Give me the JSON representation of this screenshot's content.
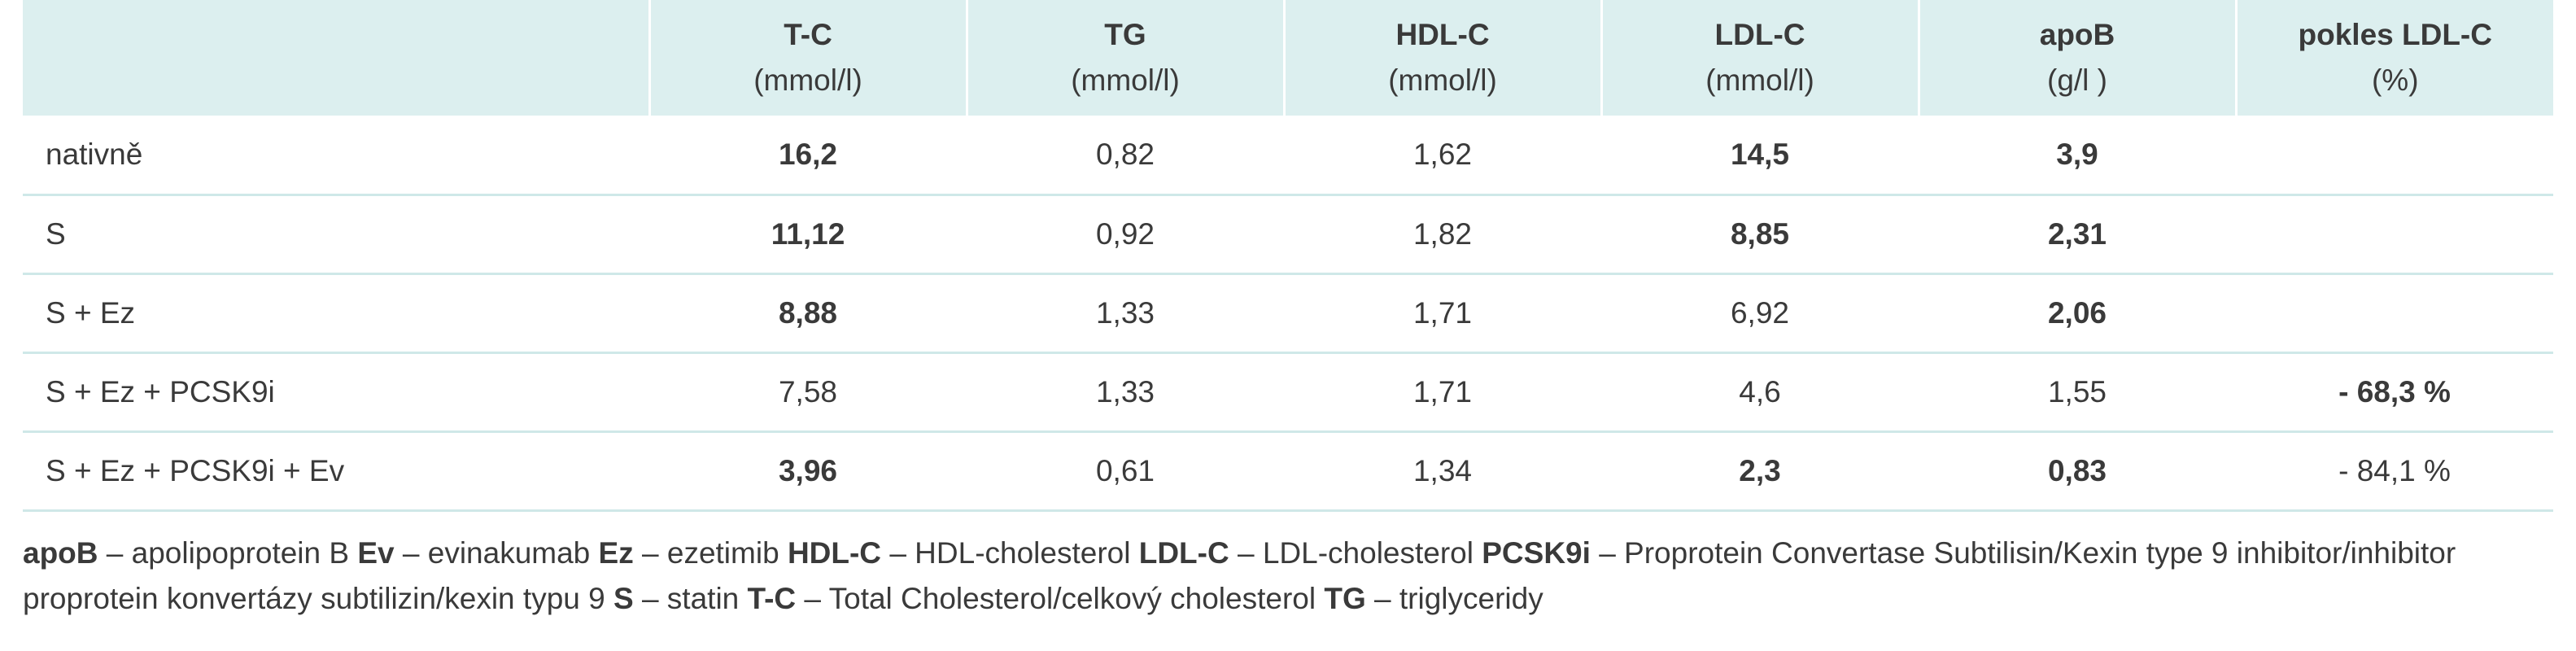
{
  "table": {
    "headers": [
      {
        "name": "",
        "unit": ""
      },
      {
        "name": "T-C",
        "unit": "(mmol/l)"
      },
      {
        "name": "TG",
        "unit": "(mmol/l)"
      },
      {
        "name": "HDL-C",
        "unit": "(mmol/l)"
      },
      {
        "name": "LDL-C",
        "unit": "(mmol/l)"
      },
      {
        "name": "apoB",
        "unit": "(g/l )"
      },
      {
        "name": "pokles LDL-C",
        "unit": "(%)"
      }
    ],
    "rows": [
      {
        "label": "nativně",
        "tc": "16,2",
        "tg": "0,82",
        "hdl": "1,62",
        "ldl": "14,5",
        "apob": "3,9",
        "pokles": ""
      },
      {
        "label": "S",
        "tc": "11,12",
        "tg": "0,92",
        "hdl": "1,82",
        "ldl": "8,85",
        "apob": "2,31",
        "pokles": ""
      },
      {
        "label": "S + Ez",
        "tc": "8,88",
        "tg": "1,33",
        "hdl": "1,71",
        "ldl": "6,92",
        "apob": "2,06",
        "pokles": ""
      },
      {
        "label": "S + Ez + PCSK9i",
        "tc": "7,58",
        "tg": "1,33",
        "hdl": "1,71",
        "ldl": "4,6",
        "apob": "1,55",
        "pokles": "- 68,3 %"
      },
      {
        "label": "S + Ez + PCSK9i + Ev",
        "tc": "3,96",
        "tg": "0,61",
        "hdl": "1,34",
        "ldl": "2,3",
        "apob": "0,83",
        "pokles": "- 84,1 %"
      }
    ]
  },
  "footnote": {
    "items": [
      {
        "abbr": "apoB",
        "desc": "– apolipoprotein B"
      },
      {
        "abbr": "Ev",
        "desc": "– evinakumab"
      },
      {
        "abbr": "Ez",
        "desc": "– ezetimib"
      },
      {
        "abbr": "HDL-C",
        "desc": "– HDL-cholesterol"
      },
      {
        "abbr": "LDL-C",
        "desc": "– LDL-cholesterol"
      },
      {
        "abbr": "PCSK9i",
        "desc": "– Proprotein Convertase Subtilisin/Kexin type 9 inhibitor/inhibitor proprotein konvertázy subtilizin/kexin typu 9"
      },
      {
        "abbr": "S",
        "desc": "– statin"
      },
      {
        "abbr": "T-C",
        "desc": "– Total Cholesterol/celkový cholesterol"
      },
      {
        "abbr": "TG",
        "desc": "– triglyceridy"
      }
    ]
  },
  "colors": {
    "header_bg": "#dcefef",
    "row_divider": "#cfe8e8",
    "text": "#3a3a3a"
  }
}
